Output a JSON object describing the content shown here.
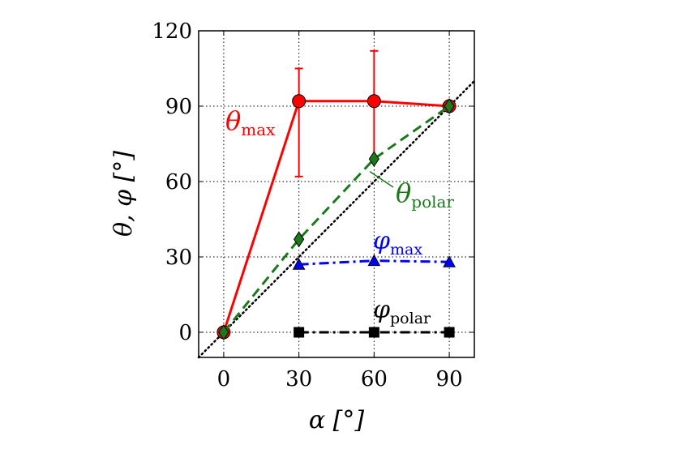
{
  "chart_data": {
    "type": "line",
    "x_ticks": [
      0,
      30,
      60,
      90
    ],
    "y_ticks": [
      0,
      30,
      60,
      90,
      120
    ],
    "xlim": [
      -10,
      100
    ],
    "ylim": [
      -10,
      120
    ],
    "grid": true,
    "xlabel": "α [°]",
    "ylabel": "θ, φ [°]",
    "reference_line": {
      "style": "dotted",
      "color": "#000000",
      "x": [
        -10,
        100
      ],
      "y": [
        -10,
        100
      ]
    },
    "series": [
      {
        "name": "θmax",
        "color": "#ff0000",
        "marker": "circle",
        "line": "solid",
        "x": [
          0,
          30,
          60,
          90
        ],
        "y": [
          0,
          92,
          92,
          90
        ],
        "err_low": [
          0,
          30,
          23,
          0
        ],
        "err_high": [
          0,
          13,
          20,
          0
        ]
      },
      {
        "name": "θpolar",
        "color": "#1a7a1a",
        "marker": "diamond",
        "line": "dashed",
        "x": [
          0,
          30,
          60,
          90
        ],
        "y": [
          0,
          37,
          69,
          90
        ]
      },
      {
        "name": "φmax",
        "color": "#0000ff",
        "marker": "triangle",
        "line": "dashdot",
        "x": [
          30,
          60,
          90
        ],
        "y": [
          27,
          28.5,
          28
        ]
      },
      {
        "name": "φpolar",
        "color": "#000000",
        "marker": "square",
        "line": "dashdot",
        "x": [
          30,
          60,
          90
        ],
        "y": [
          0,
          0,
          0
        ]
      }
    ],
    "annotations": [
      {
        "symbol": "θ",
        "sub": "max",
        "color": "#ff0000"
      },
      {
        "symbol": "θ",
        "sub": "polar",
        "color": "#1a7a1a"
      },
      {
        "symbol": "φ",
        "sub": "max",
        "color": "#0000ff"
      },
      {
        "symbol": "φ",
        "sub": "polar",
        "color": "#000000"
      }
    ]
  }
}
